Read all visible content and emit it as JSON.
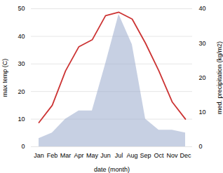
{
  "chart_data": {
    "type": "line",
    "xlabel": "date (month)",
    "ylabel": "max temp (C)",
    "y2label": "med. precipitation (kg/m2)",
    "categories": [
      "Jan",
      "Feb",
      "Mar",
      "Apr",
      "May",
      "Jun",
      "Jul",
      "Aug",
      "Sep",
      "Oct",
      "Nov",
      "Dec"
    ],
    "ylim": [
      0,
      50
    ],
    "yticks": [
      0,
      10,
      20,
      30,
      40,
      50
    ],
    "y2lim": [
      0,
      40
    ],
    "y2ticks": [
      0,
      10,
      20,
      30,
      40
    ],
    "grid": true,
    "series": [
      {
        "type": "area",
        "color": "#99aacc",
        "values": [
          3,
          5,
          10,
          13,
          13,
          30,
          48,
          37,
          10,
          6,
          6,
          5
        ]
      },
      {
        "type": "line",
        "color": "#cc3333",
        "axis": "y2",
        "values": [
          7,
          12,
          22,
          29,
          31,
          38,
          39,
          37,
          30,
          22,
          13,
          8
        ]
      }
    ]
  }
}
